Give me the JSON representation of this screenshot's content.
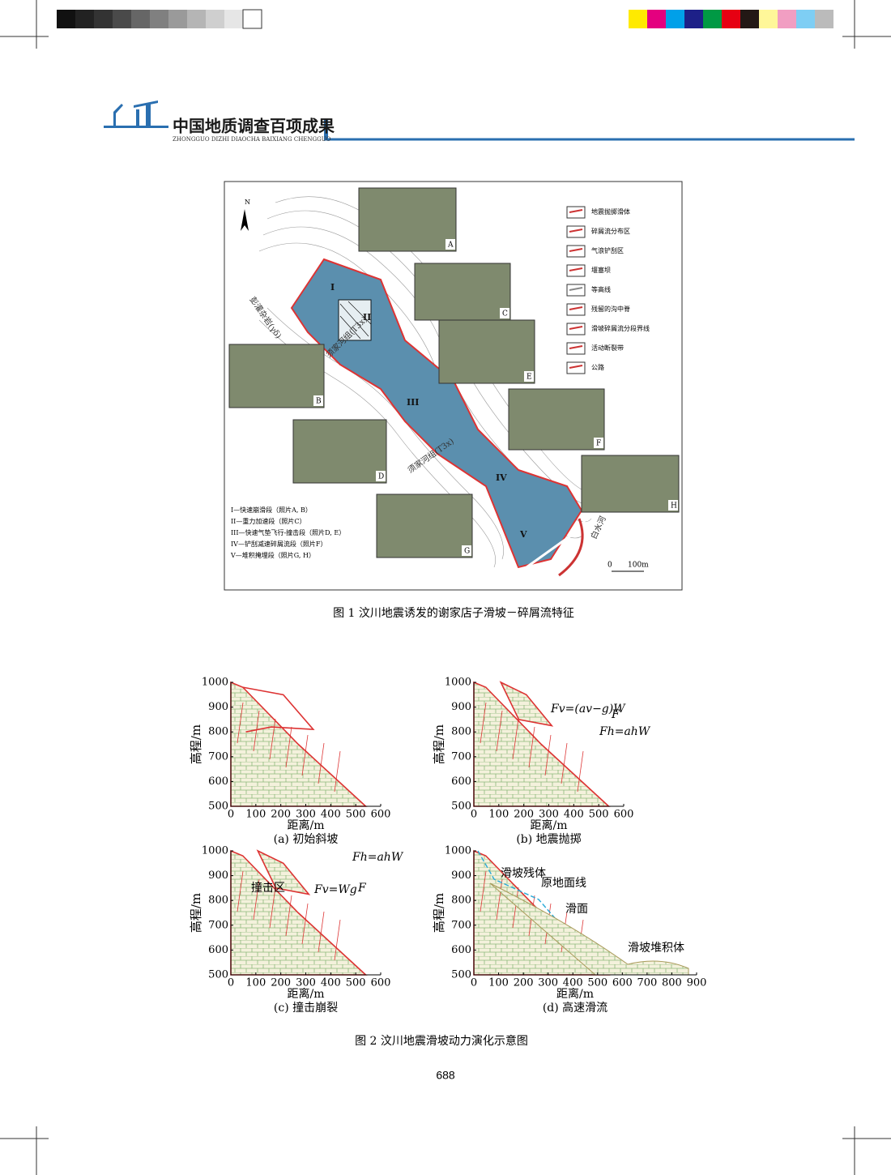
{
  "header": {
    "title": "中国地质调查百项成果",
    "subtitle": "ZHONGGUO DIZHI DIAOCHA BAIXIANG CHENGGUO"
  },
  "figure1": {
    "north": "N",
    "photo_labels": [
      "A",
      "B",
      "C",
      "D",
      "E",
      "F",
      "G",
      "H"
    ],
    "zone_labels": [
      "I",
      "II",
      "III",
      "IV",
      "V"
    ],
    "map_labels": [
      "彭灌杂岩(γδ)",
      "须家河组(T3x)",
      "须家河组(T3x)",
      "白水河"
    ],
    "legend": [
      "地震抛掷滑体",
      "碎屑流分布区",
      "气浪铲刮区",
      "堰塞坝",
      "等高线",
      "残留的沟中脊",
      "滑坡碎屑流分段界线",
      "活动断裂带",
      "公路"
    ],
    "notes": [
      "I—快速崩滑段（照片A, B）",
      "II—重力加速段（照片C）",
      "III—快速气垫飞行-撞击段（照片D, E）",
      "IV—铲刮减速碎屑流段（照片F）",
      "V—堆积掩埋段（照片G, H）"
    ],
    "scale": [
      "0",
      "100m"
    ],
    "caption": "图 1  汶川地震诱发的谢家店子滑坡－碎屑流特征"
  },
  "figure2": {
    "caption": "图 2  汶川地震滑坡动力演化示意图",
    "panels": [
      {
        "caption": "(a) 初始斜坡",
        "xlabel": "距离/m",
        "ylabel": "高程/m",
        "xlim": [
          0,
          600
        ],
        "ylim": [
          500,
          1000
        ],
        "xticks": [
          0,
          100,
          200,
          300,
          400,
          500,
          600
        ],
        "yticks": [
          500,
          600,
          700,
          800,
          900,
          1000
        ],
        "annotations": []
      },
      {
        "caption": "(b) 地震抛掷",
        "xlabel": "距离/m",
        "ylabel": "高程/m",
        "xlim": [
          0,
          600
        ],
        "ylim": [
          500,
          1000
        ],
        "xticks": [
          0,
          100,
          200,
          300,
          400,
          500,
          600
        ],
        "yticks": [
          500,
          600,
          700,
          800,
          900,
          1000
        ],
        "annotations": [
          "Fv=(av−g)W",
          "F",
          "Fh=ahW"
        ]
      },
      {
        "caption": "(c) 撞击崩裂",
        "xlabel": "距离/m",
        "ylabel": "高程/m",
        "xlim": [
          0,
          600
        ],
        "ylim": [
          500,
          1000
        ],
        "xticks": [
          0,
          100,
          200,
          300,
          400,
          500,
          600
        ],
        "yticks": [
          500,
          600,
          700,
          800,
          900,
          1000
        ],
        "annotations": [
          "Fh=ahW",
          "Fv=Wg",
          "F",
          "撞击区"
        ]
      },
      {
        "caption": "(d) 高速滑流",
        "xlabel": "距离/m",
        "ylabel": "高程/m",
        "xlim": [
          0,
          900
        ],
        "ylim": [
          500,
          1000
        ],
        "xticks": [
          0,
          100,
          200,
          300,
          400,
          500,
          600,
          700,
          800,
          900
        ],
        "yticks": [
          500,
          600,
          700,
          800,
          900,
          1000
        ],
        "annotations": [
          "滑坡残体",
          "原地面线",
          "滑面",
          "滑坡堆积体"
        ]
      }
    ]
  },
  "page_number": "688"
}
